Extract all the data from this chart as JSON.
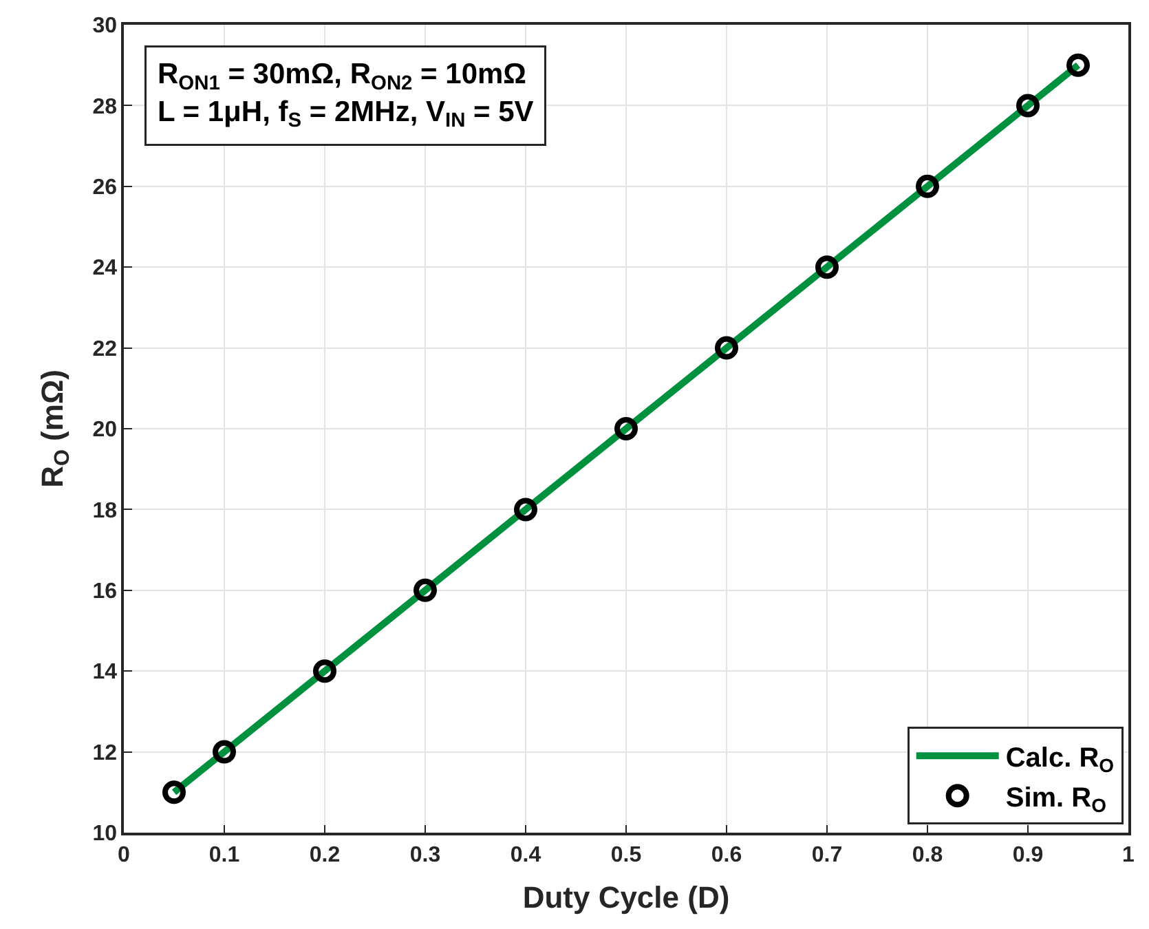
{
  "chart_data": {
    "type": "line",
    "xlabel": "Duty Cycle (D)",
    "ylabel": "R$_{O}$ (mΩ)",
    "x": [
      0.05,
      0.1,
      0.2,
      0.3,
      0.4,
      0.5,
      0.6,
      0.7,
      0.8,
      0.9,
      0.95
    ],
    "series": [
      {
        "name": "Calc. R$_{O}$",
        "color": "#00913f",
        "marker": "none",
        "line_style": "solid",
        "values": [
          11,
          12,
          14,
          16,
          18,
          20,
          22,
          24,
          26,
          28,
          29
        ]
      },
      {
        "name": "Sim. R$_{O}$",
        "type": "scatter",
        "color": "#000000",
        "marker": "circle",
        "values": [
          11,
          12,
          14,
          16,
          18,
          20,
          22,
          24,
          26,
          28,
          29
        ]
      }
    ],
    "xlim": [
      0,
      1
    ],
    "xticks": [
      0,
      0.1,
      0.2,
      0.3,
      0.4,
      0.5,
      0.6,
      0.7,
      0.8,
      0.9,
      1
    ],
    "ylim": [
      10,
      30
    ],
    "yticks": [
      10,
      12,
      14,
      16,
      18,
      20,
      22,
      24,
      26,
      28,
      30
    ],
    "grid": true,
    "legend": "bottom right",
    "annotations": [
      "R$_{ON1}$ = 30mΩ, R$_{ON2}$ = 10mΩ\nL = 1μH, f$_{S}$ = 2MHz, V$_{IN}$ = 5V"
    ]
  }
}
